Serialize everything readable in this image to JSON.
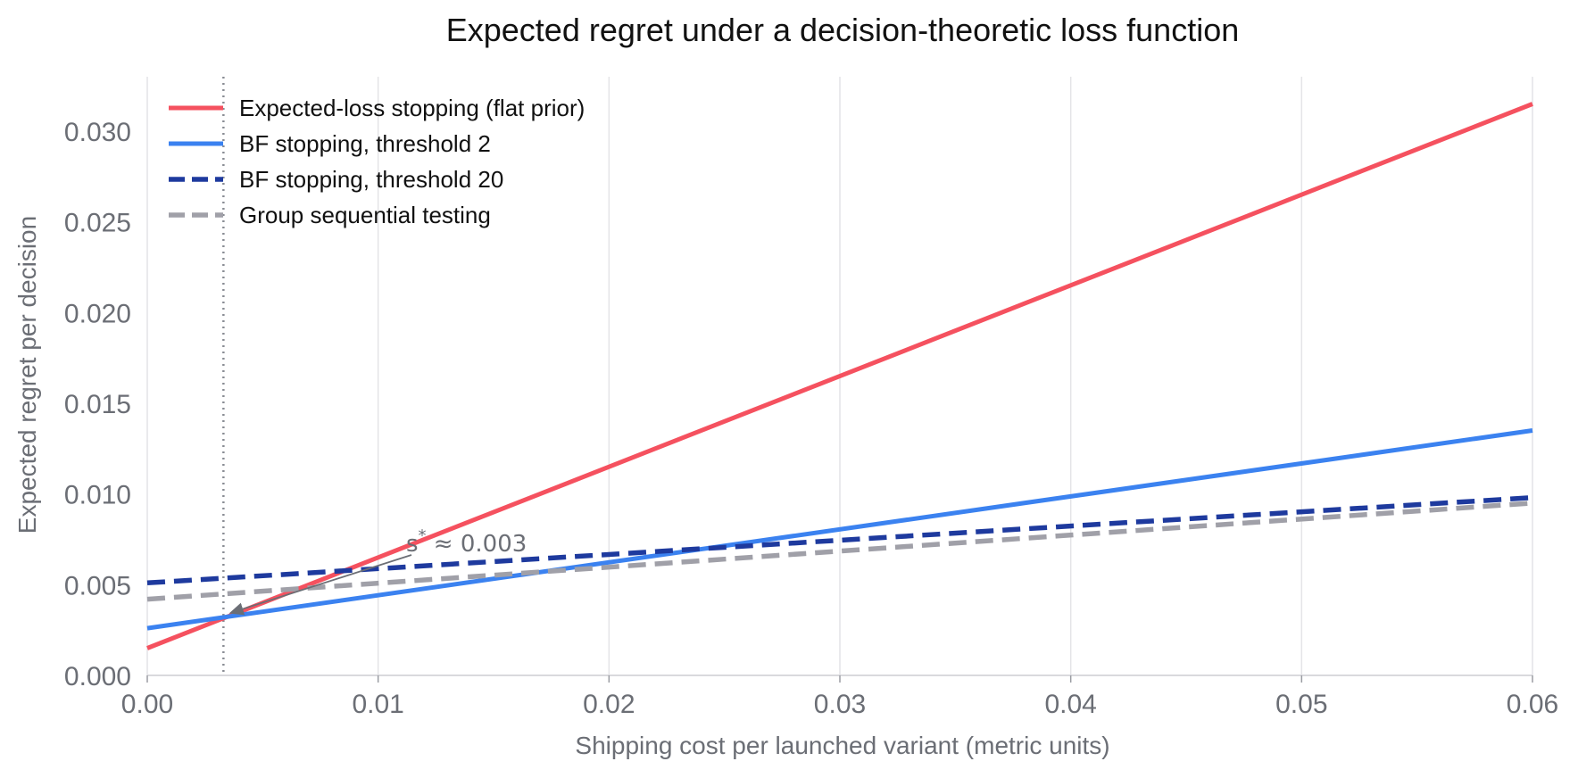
{
  "chart_data": {
    "type": "line",
    "title": "Expected regret under a decision-theoretic loss function",
    "xlabel": "Shipping cost per launched variant (metric units)",
    "ylabel": "Expected regret per decision",
    "xlim": [
      0.0,
      0.06
    ],
    "ylim": [
      0.0,
      0.033
    ],
    "x_ticks": [
      "0.00",
      "0.01",
      "0.02",
      "0.03",
      "0.04",
      "0.05",
      "0.06"
    ],
    "y_ticks": [
      "0.000",
      "0.005",
      "0.010",
      "0.015",
      "0.020",
      "0.025",
      "0.030"
    ],
    "grid": "vertical",
    "legend_position": "top-left",
    "series": [
      {
        "name": "Expected-loss stopping (flat prior)",
        "color": "#f5515f",
        "style": "solid",
        "x": [
          0.0,
          0.06
        ],
        "y": [
          0.0015,
          0.0315
        ]
      },
      {
        "name": "BF stopping, threshold 2",
        "color": "#3b82f0",
        "style": "solid",
        "x": [
          0.0,
          0.06
        ],
        "y": [
          0.0026,
          0.0135
        ]
      },
      {
        "name": "BF stopping, threshold 20",
        "color": "#1e3a9e",
        "style": "dashed",
        "x": [
          0.0,
          0.06
        ],
        "y": [
          0.0051,
          0.0098
        ]
      },
      {
        "name": "Group sequential testing",
        "color": "#a0a0a8",
        "style": "dashed",
        "x": [
          0.0,
          0.06
        ],
        "y": [
          0.0042,
          0.0095
        ]
      }
    ],
    "vline": {
      "x": 0.0033,
      "color": "#8a8d94",
      "style": "dotted"
    },
    "annotation": {
      "text": "s* ≈ 0.003",
      "main": "s",
      "sup": "*",
      "rest": "≈ 0.003",
      "x": 0.0033,
      "y": 0.0032
    }
  }
}
